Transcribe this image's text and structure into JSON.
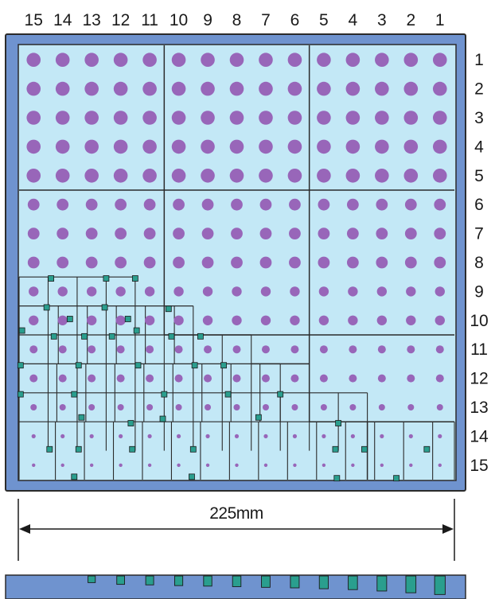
{
  "columns": [
    "15",
    "14",
    "13",
    "12",
    "11",
    "10",
    "9",
    "8",
    "7",
    "6",
    "5",
    "4",
    "3",
    "2",
    "1"
  ],
  "rows": [
    "1",
    "2",
    "3",
    "4",
    "5",
    "6",
    "7",
    "8",
    "9",
    "10",
    "11",
    "12",
    "13",
    "14",
    "15"
  ],
  "dimension": {
    "label": "225mm"
  },
  "colors": {
    "frame": "#6f93cf",
    "frame_stroke": "#2b2b2b",
    "panel": "#c3e8f6",
    "dot": "#9866b9",
    "marker": "#2a9e8e",
    "grid_line": "#2b2b2b",
    "dimension_line": "#1a1a1a"
  },
  "section_strip": {
    "bars": [
      {
        "col": 13,
        "depth": 0.2
      },
      {
        "col": 12,
        "depth": 0.3
      },
      {
        "col": 11,
        "depth": 0.33
      },
      {
        "col": 10,
        "depth": 0.37
      },
      {
        "col": 9,
        "depth": 0.4
      },
      {
        "col": 8,
        "depth": 0.43
      },
      {
        "col": 7,
        "depth": 0.47
      },
      {
        "col": 6,
        "depth": 0.5
      },
      {
        "col": 5,
        "depth": 0.55
      },
      {
        "col": 4,
        "depth": 0.6
      },
      {
        "col": 3,
        "depth": 0.68
      },
      {
        "col": 2,
        "depth": 0.78
      },
      {
        "col": 1,
        "depth": 0.88
      }
    ]
  }
}
